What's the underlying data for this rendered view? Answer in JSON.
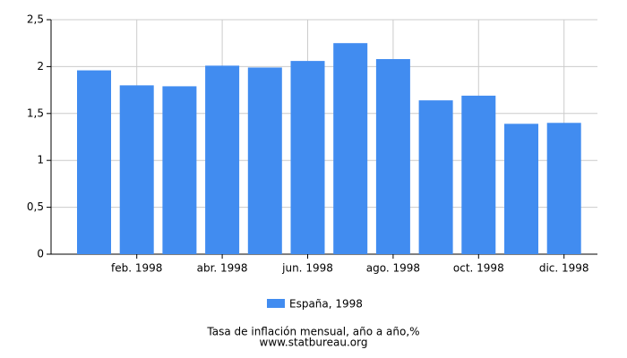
{
  "chart_data": {
    "type": "bar",
    "title": "Tasa de inflación mensual, año a año,%",
    "source": "www.statbureau.org",
    "categories": [
      null,
      "feb. 1998",
      null,
      "abr. 1998",
      null,
      "jun. 1998",
      null,
      "ago. 1998",
      null,
      "oct. 1998",
      null,
      "dic. 1998"
    ],
    "series": [
      {
        "name": "España, 1998",
        "color": "#418cf0",
        "values": [
          1.96,
          1.8,
          1.79,
          2.01,
          1.99,
          2.06,
          2.25,
          2.08,
          1.64,
          1.69,
          1.39,
          1.4
        ]
      }
    ],
    "ylim": [
      0,
      2.5
    ],
    "yticks": [
      0,
      {
        "value": 0.5,
        "label": "0,5"
      },
      1,
      {
        "value": 1.5,
        "label": "1,5"
      },
      2,
      {
        "value": 2.5,
        "label": "2,5"
      }
    ],
    "grid": true
  }
}
